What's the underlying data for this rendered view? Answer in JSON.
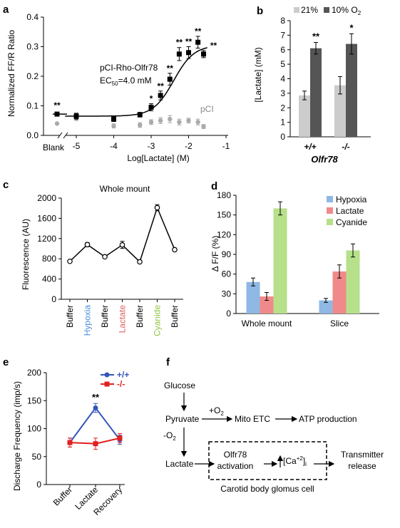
{
  "panels": {
    "a": {
      "letter": "a",
      "ylabel": "Normalized FF/R Ratio",
      "xlabel": "Log[Lactate] (M)",
      "yticks": [
        "0.0",
        "0.1",
        "0.2",
        "0.3",
        "0.4"
      ],
      "xticks": [
        "-5",
        "-4",
        "-3",
        "-2",
        "-1"
      ],
      "blank_label": "Blank",
      "annot_line1": "pCI-Rho-Olfr78",
      "annot_ec": "EC",
      "annot_ec_sub": "50",
      "annot_ec_val": "=4.0 mM",
      "pci_label": "pCI",
      "colors": {
        "rho": "#000000",
        "pci": "#aaaaaa"
      },
      "chart_data": {
        "type": "scatter",
        "xlim": [
          -5.5,
          -1
        ],
        "ylim": [
          0,
          0.4
        ],
        "series": [
          {
            "name": "pCI-Rho-Olfr78",
            "x": [
              -5,
              -4,
              -3.3,
              -3,
              -2.75,
              -2.5,
              -2.25,
              -2,
              -1.75,
              -1.6
            ],
            "y": [
              0.065,
              0.055,
              0.07,
              0.095,
              0.135,
              0.19,
              0.275,
              0.28,
              0.315,
              0.275
            ],
            "err": [
              0.01,
              0.008,
              0.008,
              0.012,
              0.015,
              0.02,
              0.022,
              0.02,
              0.02,
              0.012
            ],
            "sig": [
              "",
              "",
              "",
              "*",
              "**",
              "**",
              "**",
              "**",
              "**",
              "**"
            ]
          },
          {
            "name": "pCI",
            "x": [
              -5,
              -4,
              -3.3,
              -3,
              -2.75,
              -2.5,
              -2.25,
              -2,
              -1.75,
              -1.6
            ],
            "y": [
              0.058,
              0.032,
              0.035,
              0.045,
              0.05,
              0.055,
              0.045,
              0.05,
              0.045,
              0.03
            ],
            "err": [
              0.008,
              0.007,
              0.008,
              0.008,
              0.01,
              0.012,
              0.01,
              0.008,
              0.01,
              0.007
            ]
          }
        ],
        "blank": {
          "rho": 0.072,
          "pci": 0.04,
          "rho_sig": "**"
        }
      }
    },
    "b": {
      "letter": "b",
      "ylabel": "[Lactate] (mM)",
      "yticks": [
        "0",
        "1",
        "2",
        "3",
        "4",
        "5",
        "6",
        "7",
        "8"
      ],
      "legend": [
        "21%",
        "10% O",
        "2"
      ],
      "xlabel": "Olfr78",
      "colors": {
        "c21": "#cccccc",
        "c10": "#555555"
      },
      "chart_data": {
        "type": "bar",
        "categories": [
          "+/+",
          "-/-"
        ],
        "ylim": [
          0,
          8
        ],
        "series": [
          {
            "name": "21%",
            "values": [
              2.85,
              3.55
            ],
            "err": [
              0.3,
              0.6
            ]
          },
          {
            "name": "10% O2",
            "values": [
              6.1,
              6.4
            ],
            "err": [
              0.4,
              0.7
            ]
          }
        ],
        "sig": [
          "**",
          "*"
        ]
      }
    },
    "c": {
      "letter": "c",
      "title": "Whole mount",
      "ylabel": "Fluorescence (AU)",
      "yticks": [
        "0",
        "400",
        "800",
        "1200",
        "1600",
        "2000"
      ],
      "chart_data": {
        "type": "line",
        "categories": [
          "Buffer",
          "Hypoxia",
          "Buffer",
          "Lactate",
          "Buffer",
          "Cyanide",
          "Buffer"
        ],
        "category_colors": [
          "#000000",
          "#4a90d9",
          "#000000",
          "#e06060",
          "#000000",
          "#8dc63f",
          "#000000"
        ],
        "values": [
          750,
          1080,
          840,
          1075,
          740,
          1810,
          980
        ],
        "err": [
          20,
          40,
          25,
          70,
          25,
          60,
          30
        ],
        "ylim": [
          0,
          2000
        ]
      }
    },
    "d": {
      "letter": "d",
      "ylabel": "Δ F/F (%)",
      "yticks": [
        "0",
        "30",
        "60",
        "90",
        "120",
        "150",
        "180"
      ],
      "chart_data": {
        "type": "bar",
        "categories": [
          "Whole mount",
          "Slice"
        ],
        "ylim": [
          0,
          180
        ],
        "series": [
          {
            "name": "Hypoxia",
            "color": "#8fb8e4",
            "values": [
              48,
              20
            ],
            "err": [
              6,
              3
            ]
          },
          {
            "name": "Lactate",
            "color": "#f08a8a",
            "values": [
              26,
              64
            ],
            "err": [
              6,
              10
            ]
          },
          {
            "name": "Cyanide",
            "color": "#b7e08a",
            "values": [
              160,
              96
            ],
            "err": [
              10,
              10
            ]
          }
        ]
      }
    },
    "e": {
      "letter": "e",
      "ylabel": "Discharge Frequency (imp/s)",
      "yticks": [
        "0",
        "50",
        "100",
        "150",
        "200"
      ],
      "chart_data": {
        "type": "line",
        "categories": [
          "Buffer",
          "Lactate",
          "Recovery"
        ],
        "ylim": [
          0,
          200
        ],
        "series": [
          {
            "name": "+/+",
            "color": "#3355bb",
            "values": [
              75,
              137,
              80
            ],
            "err": [
              8,
              8,
              8
            ]
          },
          {
            "name": "-/-",
            "color": "#e02020",
            "values": [
              75,
              73,
              83
            ],
            "err": [
              8,
              10,
              8
            ]
          }
        ],
        "sig": [
          "",
          "**",
          ""
        ]
      }
    },
    "f": {
      "letter": "f",
      "glucose": "Glucose",
      "plus_o2": "+O",
      "minus_o2": "-O",
      "o2_sub": "2",
      "pyruvate": "Pyruvate",
      "mito": "Mito ETC",
      "atp": "ATP production",
      "lactate": "Lactate",
      "olfr_line1": "Olfr78",
      "olfr_line2": "activation",
      "ca_base": "[Ca",
      "ca_sup": "+2",
      "ca_close": "]",
      "ca_sub": "i",
      "transmitter_line1": "Transmitter",
      "transmitter_line2": "release",
      "box_caption": "Carotid body glomus cell"
    }
  }
}
